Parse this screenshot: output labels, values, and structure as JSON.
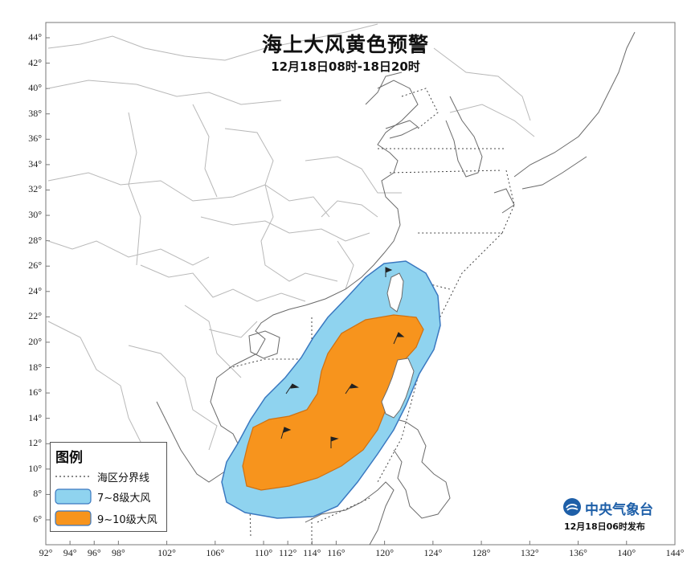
{
  "title": "海上大风黄色预警",
  "subtitle": "12月18日08时-18日20时",
  "y_ticks": [
    {
      "value": 44,
      "label": "44°"
    },
    {
      "value": 42,
      "label": "42°"
    },
    {
      "value": 40,
      "label": "40°"
    },
    {
      "value": 38,
      "label": "38°"
    },
    {
      "value": 36,
      "label": "36°"
    },
    {
      "value": 34,
      "label": "34°"
    },
    {
      "value": 32,
      "label": "32°"
    },
    {
      "value": 30,
      "label": "30°"
    },
    {
      "value": 28,
      "label": "28°"
    },
    {
      "value": 26,
      "label": "26°"
    },
    {
      "value": 24,
      "label": "24°"
    },
    {
      "value": 22,
      "label": "22°"
    },
    {
      "value": 20,
      "label": "20°"
    },
    {
      "value": 18,
      "label": "18°"
    },
    {
      "value": 16,
      "label": "16°"
    },
    {
      "value": 14,
      "label": "14°"
    },
    {
      "value": 12,
      "label": "12°"
    },
    {
      "value": 10,
      "label": "10°"
    },
    {
      "value": 8,
      "label": "8°"
    },
    {
      "value": 6,
      "label": "6°"
    }
  ],
  "x_ticks": [
    {
      "value": 92,
      "label": "92°"
    },
    {
      "value": 94,
      "label": "94°"
    },
    {
      "value": 96,
      "label": "96°"
    },
    {
      "value": 98,
      "label": "98°"
    },
    {
      "value": 102,
      "label": "102°"
    },
    {
      "value": 106,
      "label": "106°"
    },
    {
      "value": 110,
      "label": "110°"
    },
    {
      "value": 112,
      "label": "112°"
    },
    {
      "value": 114,
      "label": "114°"
    },
    {
      "value": 116,
      "label": "116°"
    },
    {
      "value": 120,
      "label": "120°"
    },
    {
      "value": 124,
      "label": "124°"
    },
    {
      "value": 128,
      "label": "128°"
    },
    {
      "value": 132,
      "label": "132°"
    },
    {
      "value": 136,
      "label": "136°"
    },
    {
      "value": 140,
      "label": "140°"
    },
    {
      "value": 144,
      "label": "144°"
    }
  ],
  "legend": {
    "title": "图例",
    "items": [
      {
        "label": "海区分界线",
        "symbol": "dotted-line",
        "color": "#444444"
      },
      {
        "label": "7~8级大风",
        "symbol": "fill",
        "color": "#8fd3ef",
        "stroke": "#3a78c0"
      },
      {
        "label": "9~10级大风",
        "symbol": "fill",
        "color": "#f7941d",
        "stroke": "#3a78c0"
      }
    ]
  },
  "wind_zones": [
    {
      "level": "7~8级大风",
      "color": "#8fd3ef",
      "stroke": "#3a78c0"
    },
    {
      "level": "9~10级大风",
      "color": "#f7941d",
      "stroke": "#d07010"
    }
  ],
  "colors": {
    "land_line": "#b0b0b0",
    "coast": "#707070",
    "sea_boundary": "#444444",
    "brand": "#1e5fa8"
  },
  "brand": {
    "name": "中央气象台",
    "icon": "cma-logo-icon"
  },
  "issue_time": "12月18日06时发布"
}
